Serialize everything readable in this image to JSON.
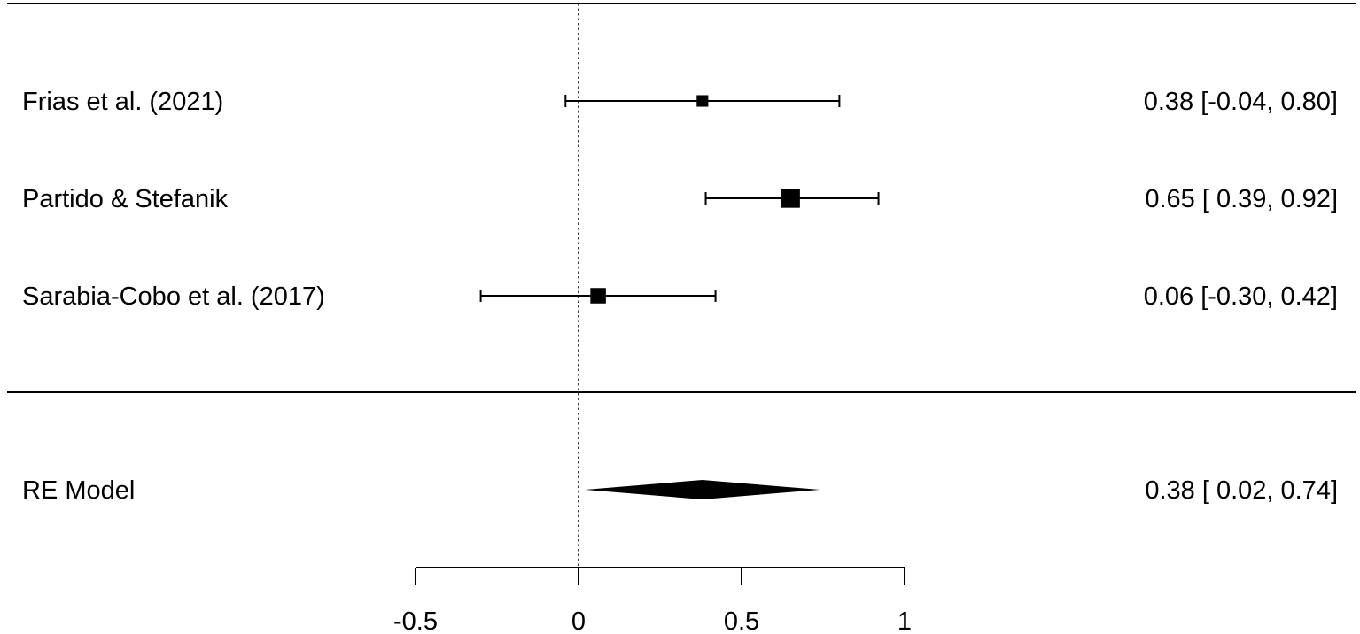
{
  "chart_data": {
    "type": "forest",
    "title": "",
    "xlabel": "",
    "ylabel": "",
    "xlim": [
      -0.5,
      1
    ],
    "x_ticks": [
      -0.5,
      0,
      0.5,
      1
    ],
    "x_tick_labels": [
      "-0.5",
      "0",
      "0.5",
      "1"
    ],
    "reference_line": 0,
    "grid": false,
    "studies": [
      {
        "label": "Frias et al. (2021)",
        "estimate": 0.38,
        "ci_low": -0.04,
        "ci_high": 0.8,
        "ci_text": "0.38 [-0.04, 0.80]",
        "weight": 0.08
      },
      {
        "label": "Partido & Stefanik",
        "estimate": 0.65,
        "ci_low": 0.39,
        "ci_high": 0.92,
        "ci_text": "0.65 [ 0.39, 0.92]",
        "weight": 0.55
      },
      {
        "label": "Sarabia-Cobo et al. (2017)",
        "estimate": 0.06,
        "ci_low": -0.3,
        "ci_high": 0.42,
        "ci_text": "0.06 [-0.30, 0.42]",
        "weight": 0.28
      }
    ],
    "summary": {
      "label": "RE Model",
      "estimate": 0.38,
      "ci_low": 0.02,
      "ci_high": 0.74,
      "ci_text": "0.38 [ 0.02, 0.74]"
    }
  }
}
